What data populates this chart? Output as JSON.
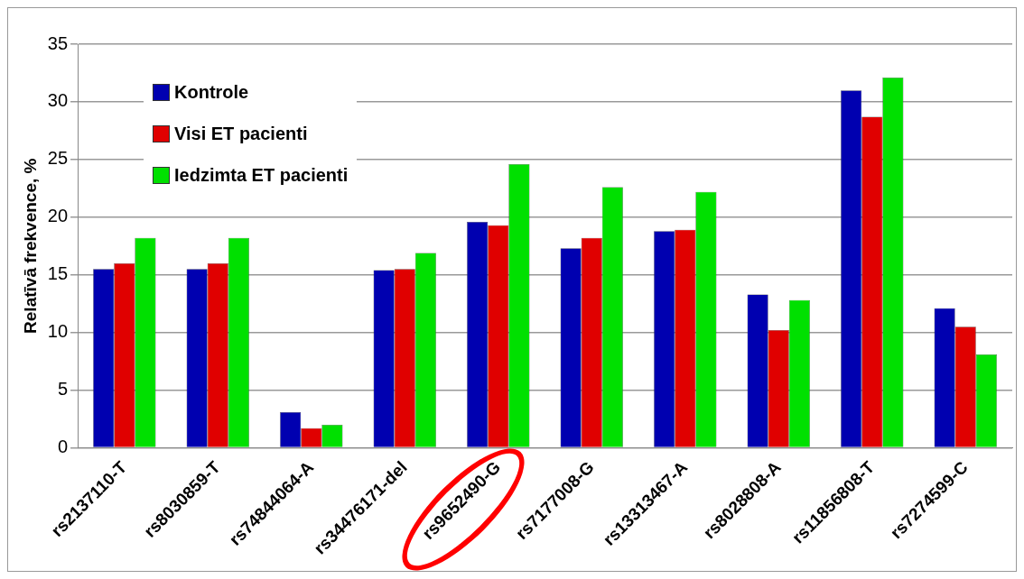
{
  "chart_data": {
    "type": "bar",
    "ylabel": "Relatīvā frekvence, %",
    "categories": [
      "rs2137110-T",
      "rs8030859-T",
      "rs74844064-A",
      "rs34476171-del",
      "rs9652490-G",
      "rs7177008-G",
      "rs13313467-A",
      "rs8028808-A",
      "rs11856808-T",
      "rs7274599-C"
    ],
    "series": [
      {
        "name": "Kontrole",
        "color": "#0000b0",
        "values": [
          15.5,
          15.5,
          3.1,
          15.4,
          19.6,
          17.3,
          18.8,
          13.3,
          31.0,
          12.1
        ]
      },
      {
        "name": "Visi ET pacienti",
        "color": "#e00000",
        "values": [
          16.0,
          16.0,
          1.7,
          15.5,
          19.3,
          18.2,
          18.9,
          10.2,
          28.7,
          10.5
        ]
      },
      {
        "name": "Iedzimta ET pacienti",
        "color": "#00e000",
        "values": [
          18.2,
          18.2,
          2.0,
          16.9,
          24.6,
          22.6,
          22.2,
          12.8,
          32.1,
          8.1
        ]
      }
    ],
    "ylim": [
      0,
      35
    ],
    "yticks": [
      0,
      5,
      10,
      15,
      20,
      25,
      30,
      35
    ],
    "grid": "y",
    "legend": "top left"
  }
}
